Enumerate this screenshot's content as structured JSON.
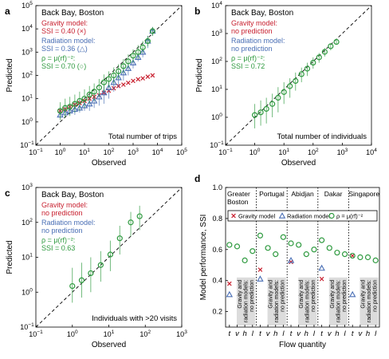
{
  "colors": {
    "gravity": "#c8202f",
    "radiation": "#4a6fb5",
    "pmodel": "#2e9a3f",
    "axis": "#000000",
    "band": "#dcdcdc"
  },
  "chart_data": [
    {
      "panel": "a",
      "type": "scatter",
      "title": "Back Bay, Boston",
      "xlabel": "Observed",
      "ylabel": "Predicted",
      "annotation": "Total number of trips",
      "xscale": "log",
      "yscale": "log",
      "xlim": [
        0.1,
        100000
      ],
      "ylim": [
        0.1,
        100000
      ],
      "xticks": [
        "10−1",
        "100",
        "101",
        "102",
        "103",
        "104",
        "105"
      ],
      "yticks": [
        "10−1",
        "100",
        "101",
        "102",
        "103",
        "104",
        "105"
      ],
      "legend": {
        "gravity_lines": [
          "Gravity model:",
          "SSI = 0.40  (×)"
        ],
        "radiation_lines": [
          "Radiation model:",
          "SSI = 0.36  (△)"
        ],
        "pmodel_lines": [
          "ρ = μ(rf)⁻²:",
          "SSI = 0.70  (○)"
        ]
      },
      "series": [
        {
          "name": "Gravity model",
          "marker": "x",
          "color_key": "gravity",
          "x": [
            1,
            1.6,
            2.5,
            4,
            6.3,
            10,
            16,
            25,
            40,
            63,
            100,
            160,
            250,
            400,
            630,
            1000,
            1600,
            2500,
            4000,
            6300
          ],
          "y": [
            3,
            3.5,
            4.5,
            5.5,
            6.5,
            8,
            10,
            12,
            14,
            18,
            22,
            28,
            35,
            40,
            48,
            58,
            68,
            75,
            88,
            100
          ],
          "err": []
        },
        {
          "name": "Radiation model",
          "marker": "triangle",
          "color_key": "radiation",
          "x": [
            1,
            1.6,
            2.5,
            4,
            6.3,
            10,
            16,
            25,
            40,
            63,
            100,
            160,
            250,
            400,
            630,
            1000,
            1600,
            2500,
            4000,
            6300
          ],
          "y": [
            2,
            2.5,
            3,
            3.5,
            4,
            5,
            6,
            8,
            12,
            18,
            30,
            50,
            80,
            130,
            200,
            350,
            600,
            1000,
            3000,
            8000
          ],
          "err": [
            [
              1.5,
              4
            ],
            [
              1.8,
              5
            ],
            [
              2,
              6
            ],
            [
              2,
              8
            ],
            [
              2.5,
              9
            ],
            [
              3,
              10
            ],
            [
              3,
              14
            ],
            [
              4,
              18
            ],
            [
              5,
              25
            ],
            [
              6,
              35
            ],
            [
              10,
              50
            ],
            [
              20,
              90
            ],
            [
              30,
              150
            ],
            [
              60,
              250
            ],
            [
              100,
              350
            ],
            [
              200,
              600
            ],
            [
              400,
              900
            ],
            [
              600,
              1500
            ],
            [
              1500,
              5000
            ],
            [
              5000,
              12000
            ]
          ]
        },
        {
          "name": "ρ = μ(rf)⁻²",
          "marker": "circle",
          "color_key": "pmodel",
          "x": [
            1,
            1.6,
            2.5,
            4,
            6.3,
            10,
            16,
            25,
            40,
            63,
            100,
            160,
            250,
            400,
            630,
            1000,
            1600,
            2500,
            4000,
            6300
          ],
          "y": [
            3,
            4,
            4.5,
            6,
            8,
            10,
            15,
            20,
            30,
            50,
            70,
            100,
            150,
            250,
            400,
            700,
            1000,
            1600,
            3000,
            8000
          ],
          "err": [
            [
              1.2,
              7
            ],
            [
              1.5,
              10
            ],
            [
              1.8,
              12
            ],
            [
              2.5,
              15
            ],
            [
              3,
              20
            ],
            [
              4,
              25
            ],
            [
              6,
              35
            ],
            [
              8,
              45
            ],
            [
              12,
              70
            ],
            [
              20,
              110
            ],
            [
              30,
              150
            ],
            [
              45,
              220
            ],
            [
              70,
              300
            ],
            [
              120,
              500
            ],
            [
              200,
              800
            ],
            [
              350,
              1300
            ],
            [
              500,
              2000
            ],
            [
              900,
              3000
            ],
            [
              1800,
              5000
            ],
            [
              5000,
              12000
            ]
          ]
        }
      ]
    },
    {
      "panel": "b",
      "type": "scatter",
      "title": "Back Bay, Boston",
      "xlabel": "Observed",
      "ylabel": "Predicted",
      "annotation": "Total number of individuals",
      "xscale": "log",
      "yscale": "log",
      "xlim": [
        0.1,
        10000
      ],
      "ylim": [
        0.1,
        10000
      ],
      "xticks": [
        "10−1",
        "100",
        "101",
        "102",
        "103",
        "104"
      ],
      "yticks": [
        "10−1",
        "100",
        "101",
        "102",
        "103",
        "104"
      ],
      "legend": {
        "gravity_lines": [
          "Gravity model:",
          "no prediction"
        ],
        "radiation_lines": [
          "Radiation model:",
          "no prediction"
        ],
        "pmodel_lines": [
          "ρ = μ(rf)⁻²:",
          "SSI = 0.72"
        ]
      },
      "series": [
        {
          "name": "ρ = μ(rf)⁻²",
          "marker": "circle",
          "color_key": "pmodel",
          "x": [
            1,
            1.6,
            2.5,
            4,
            6.3,
            10,
            16,
            25,
            40,
            63,
            100,
            160,
            250,
            400,
            630
          ],
          "y": [
            1.2,
            1.5,
            2,
            3,
            5,
            8,
            13,
            20,
            35,
            55,
            90,
            140,
            220,
            350,
            500
          ],
          "err": [
            [
              0.4,
              3
            ],
            [
              0.5,
              4
            ],
            [
              0.6,
              5
            ],
            [
              1,
              7
            ],
            [
              1.5,
              12
            ],
            [
              3,
              18
            ],
            [
              5,
              25
            ],
            [
              9,
              40
            ],
            [
              18,
              60
            ],
            [
              30,
              90
            ],
            [
              55,
              140
            ],
            [
              90,
              200
            ],
            [
              150,
              300
            ],
            [
              250,
              450
            ],
            [
              400,
              650
            ]
          ]
        }
      ]
    },
    {
      "panel": "c",
      "type": "scatter",
      "title": "Back Bay, Boston",
      "xlabel": "Observed",
      "ylabel": "Predicted",
      "annotation": "Individuals with >20 visits",
      "xscale": "log",
      "yscale": "log",
      "xlim": [
        0.1,
        1000
      ],
      "ylim": [
        0.1,
        1000
      ],
      "xticks": [
        "10−1",
        "100",
        "101",
        "102",
        "103"
      ],
      "yticks": [
        "10−1",
        "100",
        "101",
        "102",
        "103"
      ],
      "legend": {
        "gravity_lines": [
          "Gravity model:",
          "no prediction"
        ],
        "radiation_lines": [
          "Radiation model:",
          "no prediction"
        ],
        "pmodel_lines": [
          "ρ = μ(rf)⁻²:",
          "SSI = 0.63"
        ]
      },
      "series": [
        {
          "name": "ρ = μ(rf)⁻²",
          "marker": "circle",
          "color_key": "pmodel",
          "x": [
            1,
            1.8,
            3.2,
            6,
            11,
            20,
            40,
            70
          ],
          "y": [
            1.5,
            2.2,
            3.5,
            6,
            12,
            35,
            100,
            150
          ],
          "err": [
            [
              0.5,
              5
            ],
            [
              0.7,
              7
            ],
            [
              1,
              10
            ],
            [
              2,
              15
            ],
            [
              4,
              30
            ],
            [
              12,
              80
            ],
            [
              40,
              200
            ],
            [
              60,
              300
            ]
          ]
        }
      ]
    },
    {
      "panel": "d",
      "type": "scatter",
      "xlabel": "Flow quantity",
      "ylabel": "Model performance, SSI",
      "ylim": [
        0.1,
        1.0
      ],
      "yticks": [
        "0.2",
        "0.4",
        "0.6",
        "0.8",
        "1.0"
      ],
      "cities": [
        "Greater Boston",
        "Portugal",
        "Abidjan",
        "Dakar",
        "Singapore"
      ],
      "flow_labels": [
        "t",
        "v",
        "h",
        "l"
      ],
      "band_text": "Gravity and radiation models: no prediction",
      "legend_items": [
        "Gravity model",
        "Radiation model",
        "ρ = μ(rf)⁻²"
      ],
      "series": [
        {
          "name": "Gravity model",
          "marker": "x",
          "color_key": "gravity",
          "values": [
            [
              0.38
            ],
            [
              0.47
            ],
            [
              0.52
            ],
            [
              0.41
            ],
            [
              0.56
            ]
          ]
        },
        {
          "name": "Radiation model",
          "marker": "triangle",
          "color_key": "radiation",
          "values": [
            [
              0.31
            ],
            [
              0.41
            ],
            [
              0.53
            ],
            [
              0.48
            ],
            [
              0.31
            ]
          ]
        },
        {
          "name": "ρ = μ(rf)⁻²",
          "marker": "circle",
          "color_key": "pmodel",
          "values": [
            [
              0.63,
              0.62,
              0.53,
              0.59
            ],
            [
              0.69,
              0.61,
              0.57,
              0.68
            ],
            [
              0.64,
              0.63,
              0.57,
              0.6
            ],
            [
              0.66,
              0.61,
              0.58,
              0.57
            ],
            [
              0.56,
              0.55,
              0.55,
              0.53
            ]
          ]
        }
      ]
    }
  ]
}
